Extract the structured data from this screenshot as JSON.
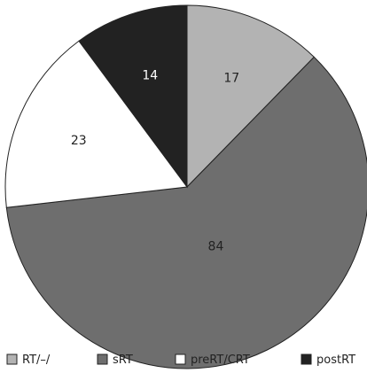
{
  "chart_data": {
    "type": "pie",
    "categories": [
      "RT/–/",
      "sRT",
      "preRT/CRT",
      "postRT"
    ],
    "values": [
      17,
      84,
      23,
      14
    ],
    "colors": [
      "#b3b3b3",
      "#6e6e6e",
      "#ffffff",
      "#222222"
    ],
    "legend_position": "bottom",
    "start_angle_clockwise_from_top": 0
  }
}
